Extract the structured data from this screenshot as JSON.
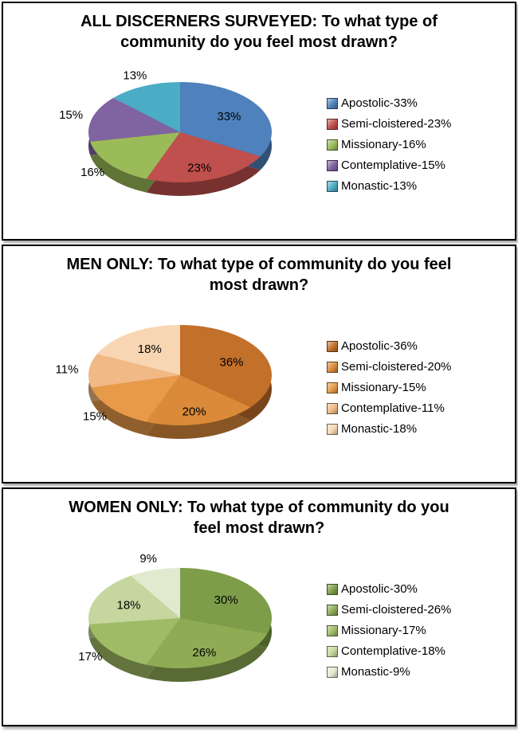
{
  "page": {
    "background": "#ffffff",
    "panel_border_color": "#000000"
  },
  "chart_data": [
    {
      "type": "pie",
      "effect": "3d",
      "title": "ALL DISCERNERS SURVEYED: To what type of community do you feel most drawn?",
      "labels": [
        "Apostolic",
        "Semi-cloistered",
        "Missionary",
        "Contemplative",
        "Monastic"
      ],
      "values": [
        33,
        23,
        16,
        15,
        13
      ],
      "slice_labels": [
        "33%",
        "23%",
        "16%",
        "15%",
        "13%"
      ],
      "legend_labels": [
        "Apostolic-33%",
        "Semi-cloistered-23%",
        "Missionary-16%",
        "Contemplative-15%",
        "Monastic-13%"
      ],
      "colors": [
        "#4F81BD",
        "#C0504D",
        "#9BBB59",
        "#8064A2",
        "#4BACC6"
      ],
      "legend_position": "right",
      "start_angle_deg": 0,
      "direction": "clockwise"
    },
    {
      "type": "pie",
      "effect": "3d",
      "title": "MEN ONLY: To what type of community do you feel most drawn?",
      "labels": [
        "Apostolic",
        "Semi-cloistered",
        "Missionary",
        "Contemplative",
        "Monastic"
      ],
      "values": [
        36,
        20,
        15,
        11,
        18
      ],
      "slice_labels": [
        "36%",
        "20%",
        "15%",
        "11%",
        "18%"
      ],
      "legend_labels": [
        "Apostolic-36%",
        "Semi-cloistered-20%",
        "Missionary-15%",
        "Contemplative-11%",
        "Monastic-18%"
      ],
      "colors": [
        "#C2702A",
        "#DB8A3A",
        "#E79A48",
        "#F1B985",
        "#F8D6B3"
      ],
      "legend_position": "right",
      "start_angle_deg": 0,
      "direction": "clockwise"
    },
    {
      "type": "pie",
      "effect": "3d",
      "title": "WOMEN ONLY: To what type of community do you feel most drawn?",
      "labels": [
        "Apostolic",
        "Semi-cloistered",
        "Missionary",
        "Contemplative",
        "Monastic"
      ],
      "values": [
        30,
        26,
        17,
        18,
        9
      ],
      "slice_labels": [
        "30%",
        "26%",
        "17%",
        "18%",
        "9%"
      ],
      "legend_labels": [
        "Apostolic-30%",
        "Semi-cloistered-26%",
        "Missionary-17%",
        "Contemplative-18%",
        "Monastic-9%"
      ],
      "colors": [
        "#7E9D49",
        "#8FAC55",
        "#9FBB66",
        "#C5D79E",
        "#E1EACF"
      ],
      "legend_position": "right",
      "start_angle_deg": 0,
      "direction": "clockwise"
    }
  ]
}
